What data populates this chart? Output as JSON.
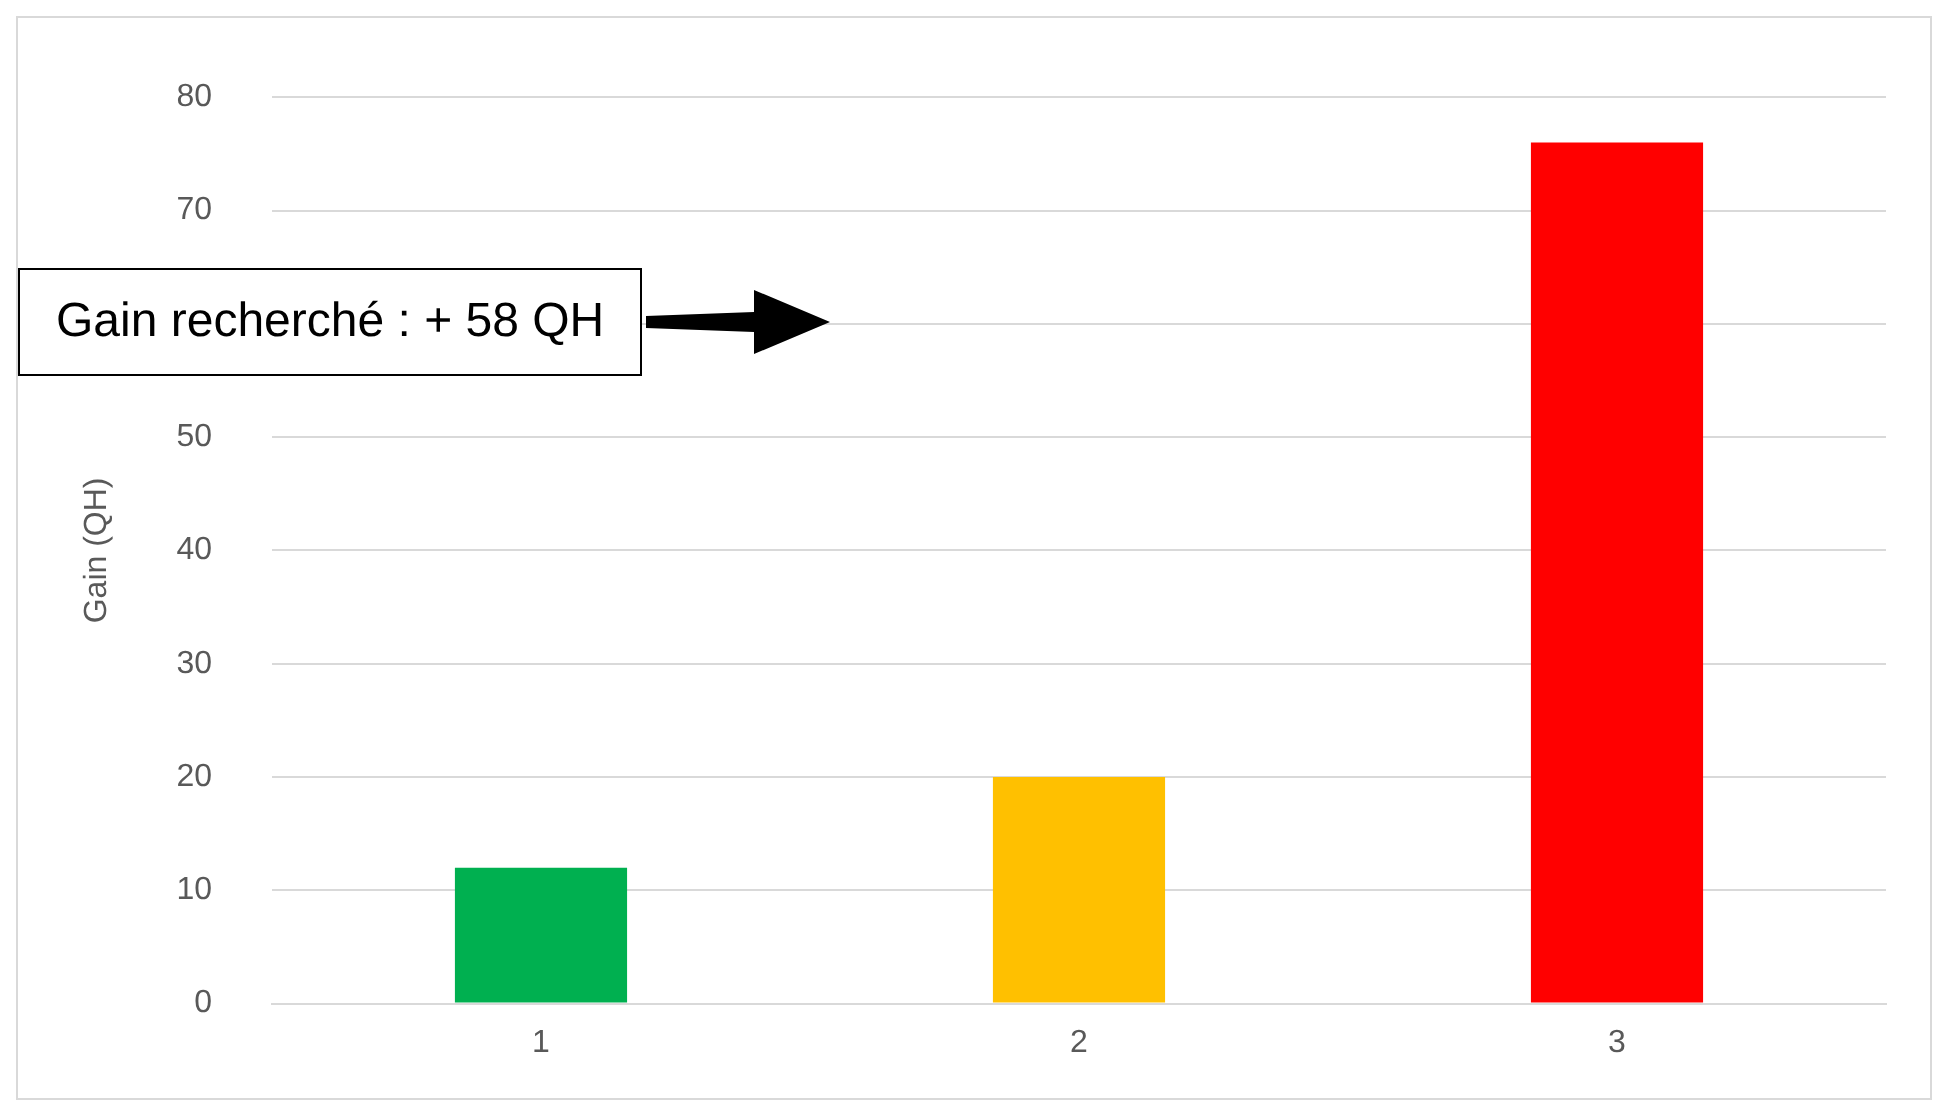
{
  "chart_data": {
    "type": "bar",
    "ylabel": "Gain (QH)",
    "categories": [
      "1",
      "2",
      "3"
    ],
    "values": [
      12,
      20,
      76
    ],
    "colors": [
      "#00b050",
      "#ffc000",
      "#ff0000"
    ],
    "ylim": [
      0,
      80
    ],
    "yticks": [
      0,
      10,
      20,
      30,
      40,
      50,
      {
        "value": 60,
        "label": null
      },
      70,
      80
    ],
    "grid": "y",
    "annotations": [
      "Gain recherché : + 58 QH"
    ]
  }
}
